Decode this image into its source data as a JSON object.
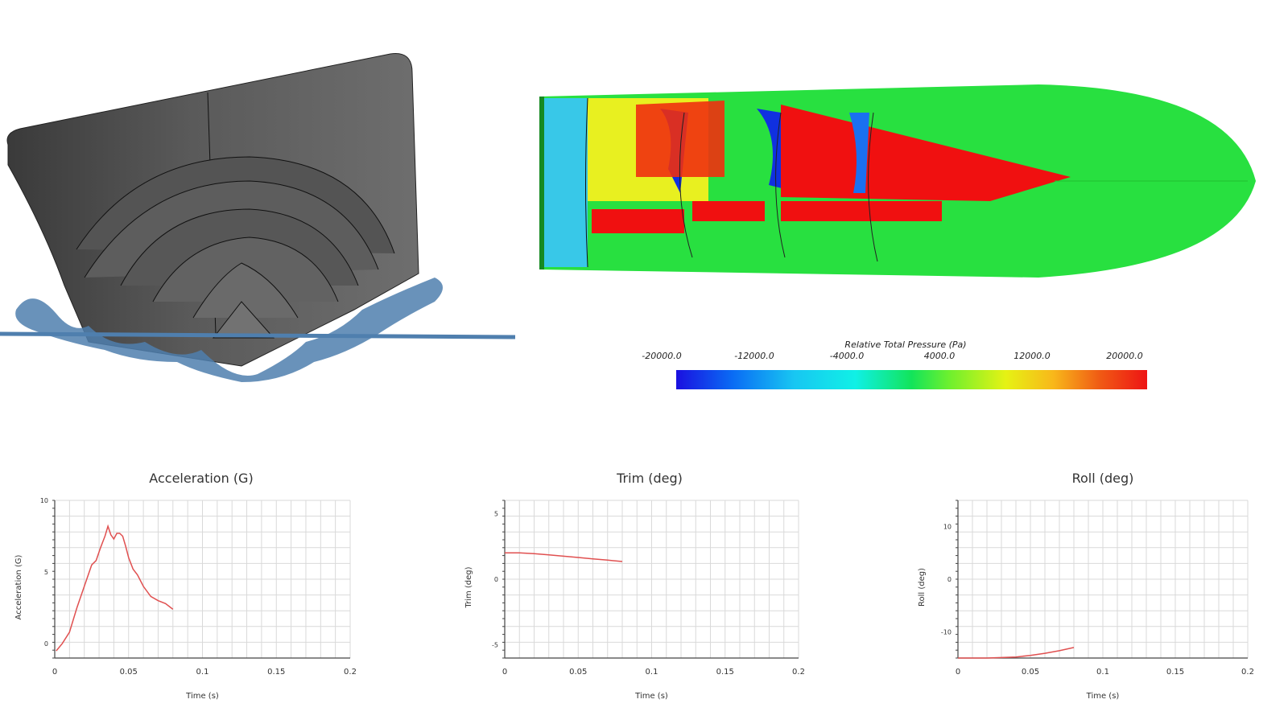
{
  "colorbar": {
    "title": "Relative Total Pressure (Pa)",
    "ticks": [
      "-20000.0",
      "-12000.0",
      "-4000.0",
      "4000.0",
      "12000.0",
      "20000.0"
    ]
  },
  "colors": {
    "series": "#e05050",
    "grid": "#d9d9d9",
    "axis": "#444444",
    "water": "#4f7fae",
    "hull": "#5a5a5a"
  },
  "chart_data": [
    {
      "type": "line",
      "title": "Acceleration (G)",
      "xlabel": "Time (s)",
      "ylabel": "Acceleration (G)",
      "xlim": [
        0,
        0.2
      ],
      "ylim": [
        -1,
        10
      ],
      "xticks": [
        "0",
        "0.05",
        "0.1",
        "0.15",
        "0.2"
      ],
      "xtick_values": [
        0,
        0.05,
        0.1,
        0.15,
        0.2
      ],
      "yticks": [
        "0",
        "5",
        "10"
      ],
      "ytick_values": [
        0,
        5,
        10
      ],
      "grid": true,
      "series": [
        {
          "x": [
            0.001,
            0.005,
            0.01,
            0.015,
            0.02,
            0.025,
            0.028,
            0.031,
            0.034,
            0.036,
            0.038,
            0.04,
            0.042,
            0.044,
            0.046,
            0.048,
            0.05,
            0.053,
            0.056,
            0.06,
            0.065,
            0.07,
            0.075,
            0.08
          ],
          "y": [
            -0.5,
            0,
            0.8,
            2.5,
            4,
            5.5,
            5.8,
            6.7,
            7.5,
            8.2,
            7.6,
            7.3,
            7.7,
            7.7,
            7.5,
            6.8,
            6.0,
            5.2,
            4.8,
            4.0,
            3.3,
            3.0,
            2.8,
            2.4
          ]
        }
      ]
    },
    {
      "type": "line",
      "title": "Trim (deg)",
      "xlabel": "Time (s)",
      "ylabel": "Trim (deg)",
      "xlim": [
        0,
        0.2
      ],
      "ylim": [
        -6,
        6
      ],
      "xticks": [
        "0",
        "0.05",
        "0.1",
        "0.15",
        "0.2"
      ],
      "xtick_values": [
        0,
        0.05,
        0.1,
        0.15,
        0.2
      ],
      "yticks": [
        "5",
        "0",
        "-5"
      ],
      "ytick_values": [
        5,
        0,
        -5
      ],
      "grid": true,
      "series": [
        {
          "x": [
            0,
            0.01,
            0.02,
            0.03,
            0.04,
            0.05,
            0.06,
            0.07,
            0.08
          ],
          "y": [
            2.0,
            2.0,
            1.95,
            1.85,
            1.75,
            1.65,
            1.55,
            1.45,
            1.35
          ]
        }
      ]
    },
    {
      "type": "line",
      "title": "Roll (deg)",
      "xlabel": "Time (s)",
      "ylabel": "Roll (deg)",
      "xlim": [
        0,
        0.2
      ],
      "ylim": [
        -15,
        15
      ],
      "xticks": [
        "0",
        "0.05",
        "0.1",
        "0.15",
        "0.2"
      ],
      "xtick_values": [
        0,
        0.05,
        0.1,
        0.15,
        0.2
      ],
      "yticks": [
        "10",
        "0",
        "-10"
      ],
      "ytick_values": [
        10,
        0,
        -10
      ],
      "grid": true,
      "series": [
        {
          "x": [
            0,
            0.02,
            0.04,
            0.05,
            0.06,
            0.07,
            0.08
          ],
          "y": [
            -15,
            -15,
            -14.8,
            -14.5,
            -14.1,
            -13.6,
            -13.0
          ]
        }
      ]
    }
  ]
}
